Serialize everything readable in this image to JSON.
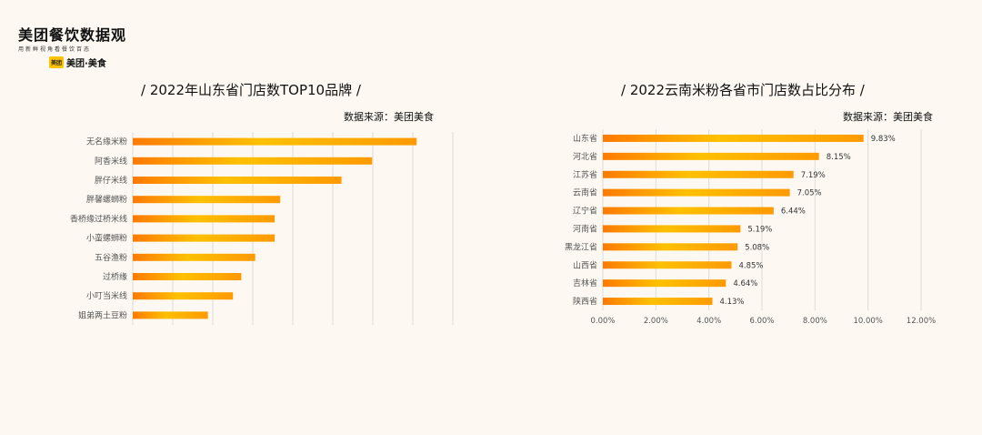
{
  "logo": {
    "main": "美团餐饮数据观",
    "tagline": "用新鲜视角看餐饮百态",
    "badge": "美团",
    "brand": "美团·美食"
  },
  "chart_data": [
    {
      "type": "bar",
      "orientation": "horizontal",
      "title": "/  2022年山东省门店数TOP10品牌  /",
      "source": "数据来源：美团美食",
      "categories": [
        "无名缘米粉",
        "阿香米线",
        "胖仔米线",
        "胖馨螺蛳粉",
        "香桥缘过桥米线",
        "小蛮螺蛳粉",
        "五谷渔粉",
        "过桥缘",
        "小叮当米线",
        "姐弟两土豆粉"
      ],
      "values": [
        1020,
        860,
        750,
        530,
        510,
        510,
        440,
        390,
        360,
        270
      ],
      "xlim": [
        0,
        1150
      ],
      "grid": true
    },
    {
      "type": "bar",
      "orientation": "horizontal",
      "title": "/ 2022云南米粉各省市门店数占比分布  /",
      "source": "数据来源：美团美食",
      "categories": [
        "山东省",
        "河北省",
        "江苏省",
        "云南省",
        "辽宁省",
        "河南省",
        "黑龙江省",
        "山西省",
        "吉林省",
        "陕西省"
      ],
      "values": [
        9.83,
        8.15,
        7.19,
        7.05,
        6.44,
        5.19,
        5.08,
        4.85,
        4.64,
        4.13
      ],
      "value_labels": [
        "9.83%",
        "8.15%",
        "7.19%",
        "7.05%",
        "6.44%",
        "5.19%",
        "5.08%",
        "4.85%",
        "4.64%",
        "4.13%"
      ],
      "xticks": [
        "0.00%",
        "2.00%",
        "4.00%",
        "6.00%",
        "8.00%",
        "10.00%",
        "12.00%"
      ],
      "xlim": [
        0,
        12
      ],
      "grid": true
    }
  ],
  "colors": {
    "bar_start": "#ff7a00",
    "bar_mid": "#ffc000",
    "bar_end": "#ff9a00",
    "grid": "#dcdcdc"
  }
}
